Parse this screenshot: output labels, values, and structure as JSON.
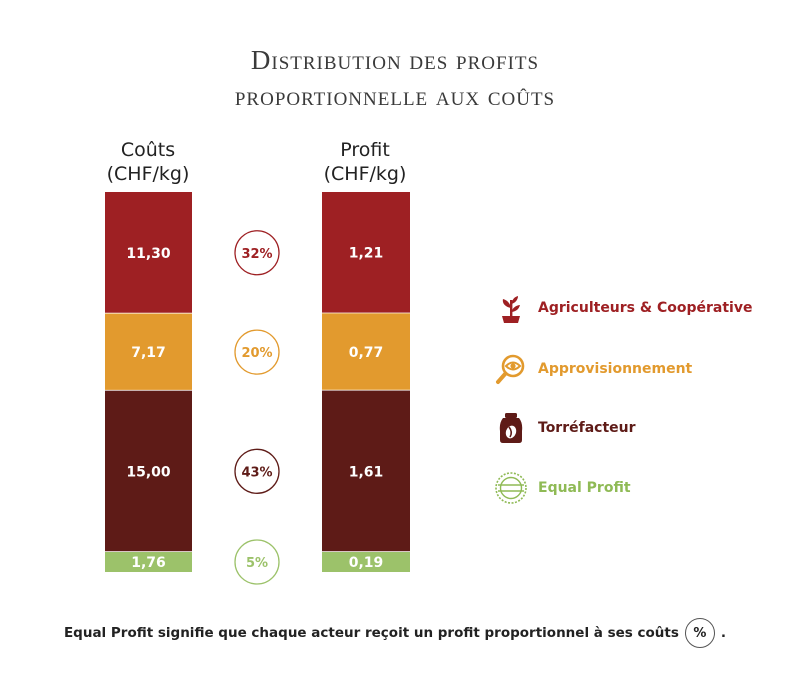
{
  "title_line1": "Distribution des profits",
  "title_line2": "proportionnelle aux coûts",
  "columns": {
    "costs_title": "Coûts",
    "costs_unit": "(CHF/kg)",
    "profit_title": "Profit",
    "profit_unit": "(CHF/kg)"
  },
  "chart_data": {
    "type": "bar",
    "stacked": true,
    "categories": [
      "Coûts",
      "Profit"
    ],
    "series": [
      {
        "name": "Agriculteurs & Coopérative",
        "values": [
          11.3,
          1.21
        ],
        "labels": [
          "11,30",
          "1,21"
        ],
        "share": "32%",
        "color": "#9e2023"
      },
      {
        "name": "Approvisionnement",
        "values": [
          7.17,
          0.77
        ],
        "labels": [
          "7,17",
          "0,77"
        ],
        "share": "20%",
        "color": "#e29a2e"
      },
      {
        "name": "Torréfacteur",
        "values": [
          15.0,
          1.61
        ],
        "labels": [
          "15,00",
          "1,61"
        ],
        "share": "43%",
        "color": "#5e1b17"
      },
      {
        "name": "Equal Profit",
        "values": [
          1.76,
          0.19
        ],
        "labels": [
          "1,76",
          "0,19"
        ],
        "share": "5%",
        "color": "#9cc26a"
      }
    ]
  },
  "legend": {
    "items": [
      {
        "label": "Agriculteurs & Coopérative",
        "icon": "plant-icon",
        "color": "#9e2023"
      },
      {
        "label": "Approvisionnement",
        "icon": "magnifier-eye-icon",
        "color": "#e29a2e"
      },
      {
        "label": "Torréfacteur",
        "icon": "coffee-bag-icon",
        "color": "#5e1b17"
      },
      {
        "label": "Equal Profit",
        "icon": "equal-profit-seal-icon",
        "color": "#8fba55"
      }
    ]
  },
  "footer": {
    "text": "Equal Profit signifie que chaque acteur reçoit un profit proportionnel à ses coûts",
    "badge": "%",
    "end": "."
  }
}
